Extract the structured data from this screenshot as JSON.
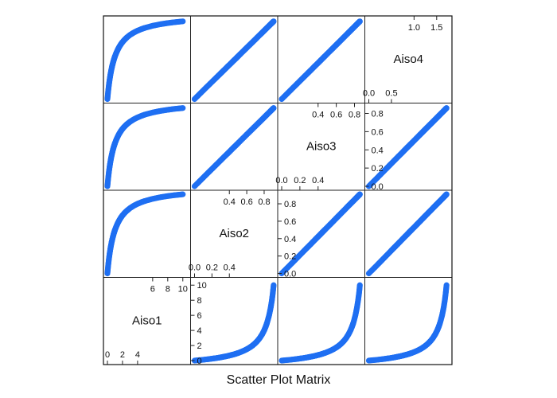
{
  "chart_data": {
    "type": "scatter",
    "subtype": "scatter-plot-matrix",
    "xlabel": "Scatter Plot Matrix",
    "variables": [
      "Aiso1",
      "Aiso2",
      "Aiso3",
      "Aiso4"
    ],
    "point_color": "#1f6ff2",
    "grid": false,
    "diagonal_ticks": {
      "Aiso1": {
        "low": [
          "0",
          "2",
          "4"
        ],
        "high": [
          "6",
          "8",
          "10"
        ]
      },
      "Aiso2": {
        "low": [
          "0.0",
          "0.2",
          "0.4"
        ],
        "high": [
          "0.4",
          "0.6",
          "0.8"
        ]
      },
      "Aiso3": {
        "low": [
          "0.0",
          "0.2",
          "0.4"
        ],
        "high": [
          "0.4",
          "0.6",
          "0.8"
        ]
      },
      "Aiso4": {
        "low": [
          "0.0",
          "0.5"
        ],
        "high": [
          "1.0",
          "1.5"
        ]
      }
    },
    "diagonal_tick_values": {
      "Aiso1": {
        "low": [
          0,
          2,
          4
        ],
        "high": [
          6,
          8,
          10
        ]
      },
      "Aiso2": {
        "low": [
          0.0,
          0.2,
          0.4
        ],
        "high": [
          0.4,
          0.6,
          0.8
        ]
      },
      "Aiso3": {
        "low": [
          0.0,
          0.2,
          0.4
        ],
        "high": [
          0.4,
          0.6,
          0.8
        ]
      },
      "Aiso4": {
        "low": [
          0.0,
          0.5
        ],
        "high": [
          1.0,
          1.5
        ]
      }
    },
    "ranges": {
      "Aiso1": [
        0,
        10.5
      ],
      "Aiso2": [
        0,
        0.91
      ],
      "Aiso3": [
        0,
        0.87
      ],
      "Aiso4": [
        0,
        1.75
      ]
    },
    "sample_parameter": [
      0,
      0.1,
      0.2,
      0.3,
      0.4,
      0.5,
      0.6,
      0.7,
      0.8,
      0.9,
      1.0,
      1.2,
      1.4,
      1.6,
      1.8,
      2.0,
      2.3,
      2.6,
      3.0,
      3.5,
      4.0,
      4.5,
      5.0,
      6.0,
      7.0,
      8.0,
      9.0,
      10.0
    ],
    "series": [
      {
        "name": "Aiso1",
        "values": [
          0,
          0.1,
          0.2,
          0.3,
          0.4,
          0.5,
          0.6,
          0.7,
          0.8,
          0.9,
          1.0,
          1.2,
          1.4,
          1.6,
          1.8,
          2.0,
          2.3,
          2.6,
          3.0,
          3.5,
          4.0,
          4.5,
          5.0,
          6.0,
          7.0,
          8.0,
          9.0,
          10.0
        ]
      },
      {
        "name": "Aiso2",
        "values": [
          0.0,
          0.091,
          0.167,
          0.231,
          0.286,
          0.333,
          0.375,
          0.412,
          0.444,
          0.474,
          0.5,
          0.545,
          0.583,
          0.615,
          0.643,
          0.667,
          0.697,
          0.722,
          0.75,
          0.778,
          0.8,
          0.818,
          0.833,
          0.857,
          0.875,
          0.889,
          0.9,
          0.909
        ]
      },
      {
        "name": "Aiso3",
        "values": [
          0.0,
          0.087,
          0.159,
          0.219,
          0.271,
          0.316,
          0.355,
          0.39,
          0.421,
          0.448,
          0.473,
          0.516,
          0.552,
          0.582,
          0.608,
          0.631,
          0.659,
          0.683,
          0.709,
          0.735,
          0.756,
          0.773,
          0.788,
          0.81,
          0.827,
          0.84,
          0.851,
          0.859
        ]
      },
      {
        "name": "Aiso4",
        "values": [
          0.0,
          0.175,
          0.318,
          0.438,
          0.541,
          0.63,
          0.709,
          0.778,
          0.84,
          0.895,
          0.945,
          1.031,
          1.102,
          1.163,
          1.215,
          1.26,
          1.317,
          1.365,
          1.418,
          1.47,
          1.512,
          1.546,
          1.575,
          1.62,
          1.654,
          1.68,
          1.701,
          1.718
        ]
      }
    ]
  }
}
